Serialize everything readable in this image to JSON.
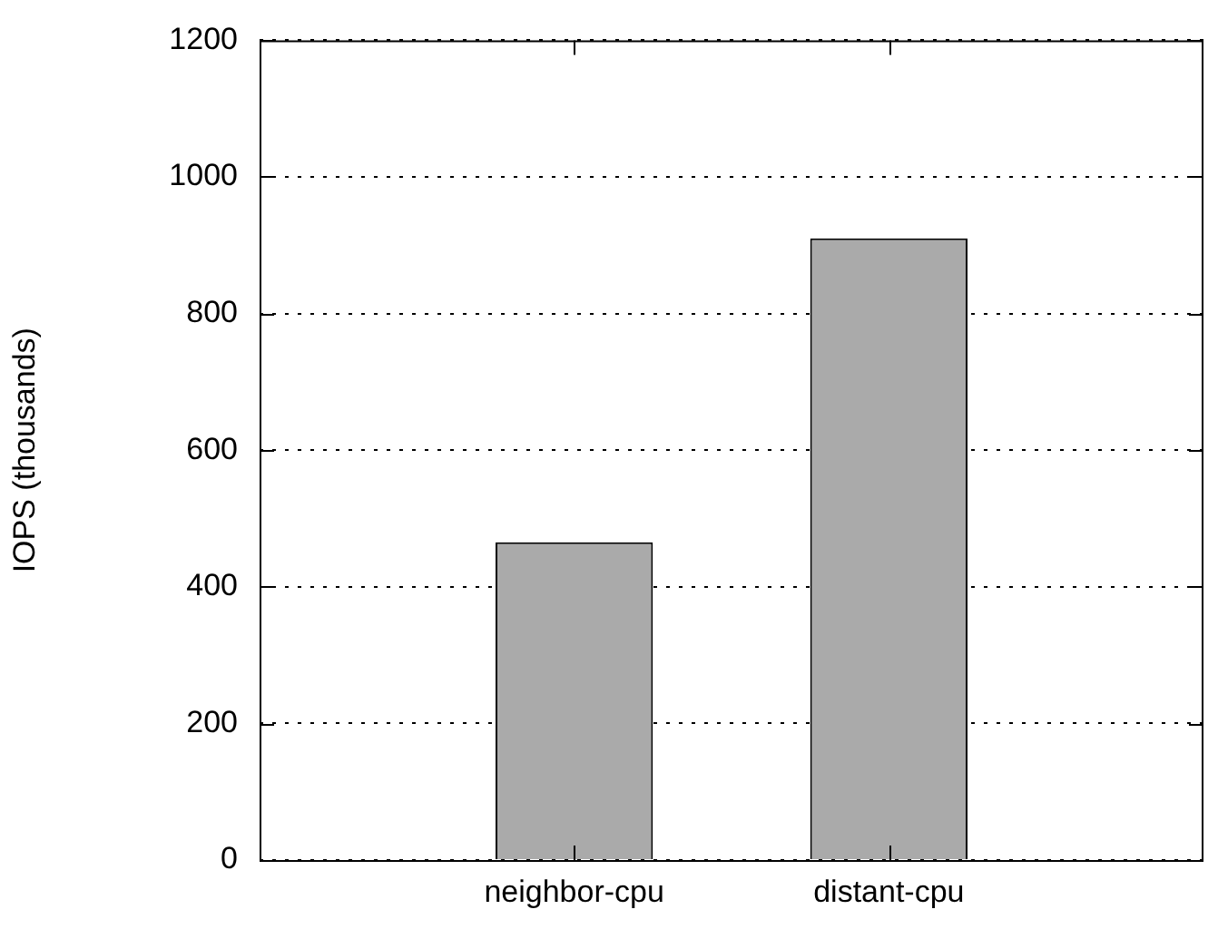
{
  "chart_data": {
    "type": "bar",
    "ylabel": "IOPS (thousands)",
    "categories": [
      null,
      "neighbor-cpu",
      "distant-cpu",
      null
    ],
    "series": [
      {
        "color": "#aaaaaa",
        "values": [
          null,
          465,
          910,
          null
        ]
      }
    ],
    "ylim": [
      0,
      1200
    ],
    "yticks": [
      0,
      200,
      400,
      600,
      800,
      1000,
      1200
    ],
    "grid": "y",
    "legend": false
  }
}
